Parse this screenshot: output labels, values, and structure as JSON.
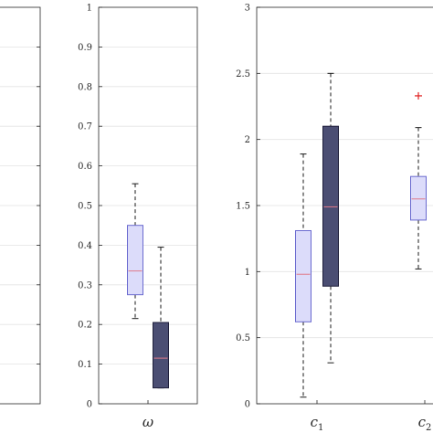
{
  "chart_data": [
    {
      "type": "box",
      "panel": "left-partial",
      "ylim": [
        0,
        1
      ],
      "yticks": [],
      "grid": true,
      "groups": []
    },
    {
      "type": "box",
      "panel": "middle",
      "ylim": [
        0,
        1
      ],
      "ytick_labels": [
        "0",
        "0.1",
        "0.2",
        "0.3",
        "0.4",
        "0.5",
        "0.6",
        "0.7",
        "0.8",
        "0.9",
        "1"
      ],
      "grid": true,
      "groups": [
        {
          "xlabel": "ω",
          "sub": "",
          "boxes": [
            {
              "style": "light",
              "whisker_low": 0.215,
              "q1": 0.275,
              "median": 0.335,
              "q3": 0.45,
              "whisker_high": 0.555,
              "outliers": []
            },
            {
              "style": "dark",
              "whisker_low": 0.04,
              "q1": 0.04,
              "median": 0.115,
              "q3": 0.205,
              "whisker_high": 0.395,
              "outliers": []
            }
          ]
        }
      ]
    },
    {
      "type": "box",
      "panel": "right",
      "ylim": [
        0,
        3
      ],
      "ytick_labels": [
        "0",
        "0.5",
        "1",
        "1.5",
        "2",
        "2.5",
        "3"
      ],
      "grid": true,
      "groups": [
        {
          "xlabel": "c",
          "sub": "1",
          "boxes": [
            {
              "style": "light",
              "whisker_low": 0.05,
              "q1": 0.62,
              "median": 0.98,
              "q3": 1.31,
              "whisker_high": 1.89,
              "outliers": []
            },
            {
              "style": "dark",
              "whisker_low": 0.31,
              "q1": 0.89,
              "median": 1.49,
              "q3": 2.1,
              "whisker_high": 2.5,
              "outliers": []
            }
          ]
        },
        {
          "xlabel": "c",
          "sub": "2",
          "boxes": [
            {
              "style": "light",
              "whisker_low": 1.02,
              "q1": 1.39,
              "median": 1.55,
              "q3": 1.72,
              "whisker_high": 2.09,
              "outliers": [
                2.33
              ]
            }
          ]
        }
      ]
    }
  ],
  "colors": {
    "light_fill": "#dcdcfa",
    "light_edge": "#6a6acf",
    "dark_fill": "#4b4e73",
    "dark_edge": "#1e1e3a",
    "median": "#e07a8a",
    "outlier": "#e02020",
    "whisker": "#1a1a1a"
  }
}
